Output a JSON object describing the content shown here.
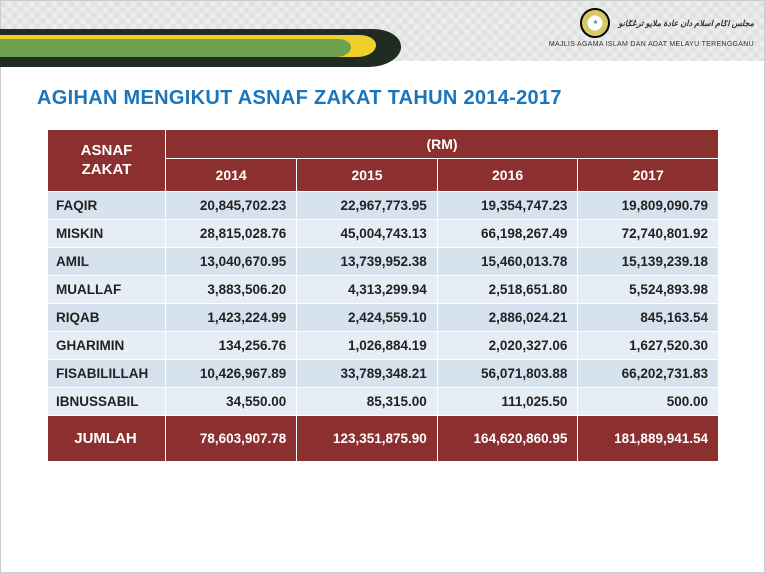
{
  "header": {
    "jawi_text": "مجلس اݢام اسلام دان عادة ملايو ترڠݢانو",
    "org_name": "MAJLIS AGAMA ISLAM DAN ADAT MELAYU TERENGGANU"
  },
  "title": "AGIHAN MENGIKUT ASNAF ZAKAT TAHUN 2014-2017",
  "table": {
    "corner_label": "ASNAF ZAKAT",
    "group_header": "(RM)",
    "years": [
      "2014",
      "2015",
      "2016",
      "2017"
    ],
    "rows": [
      {
        "cat": "FAQIR",
        "vals": [
          "20,845,702.23",
          "22,967,773.95",
          "19,354,747.23",
          "19,809,090.79"
        ]
      },
      {
        "cat": "MISKIN",
        "vals": [
          "28,815,028.76",
          "45,004,743.13",
          "66,198,267.49",
          "72,740,801.92"
        ]
      },
      {
        "cat": "AMIL",
        "vals": [
          "13,040,670.95",
          "13,739,952.38",
          "15,460,013.78",
          "15,139,239.18"
        ]
      },
      {
        "cat": "MUALLAF",
        "vals": [
          "3,883,506.20",
          "4,313,299.94",
          "2,518,651.80",
          "5,524,893.98"
        ]
      },
      {
        "cat": "RIQAB",
        "vals": [
          "1,423,224.99",
          "2,424,559.10",
          "2,886,024.21",
          "845,163.54"
        ]
      },
      {
        "cat": "GHARIMIN",
        "vals": [
          "134,256.76",
          "1,026,884.19",
          "2,020,327.06",
          "1,627,520.30"
        ]
      },
      {
        "cat": "FISABILILLAH",
        "vals": [
          "10,426,967.89",
          "33,789,348.21",
          "56,071,803.88",
          "66,202,731.83"
        ]
      },
      {
        "cat": "IBNUSSABIL",
        "vals": [
          "34,550.00",
          "85,315.00",
          "111,025.50",
          "500.00"
        ]
      }
    ],
    "total_label": "JUMLAH",
    "totals": [
      "78,603,907.78",
      "123,351,875.90",
      "164,620,860.95",
      "181,889,941.54"
    ]
  },
  "style": {
    "title_color": "#1b75bb",
    "header_bg": "#8b2f2f",
    "row_bg": "#d6e2ee",
    "alt_row_bg": "#e6edf5",
    "wave_dark": "#1f2b23",
    "wave_yellow": "#f0d02a",
    "wave_green": "#6fa04f",
    "body_bg": "#ffffff",
    "table_border": "#ffffff",
    "text_color": "#222222"
  }
}
